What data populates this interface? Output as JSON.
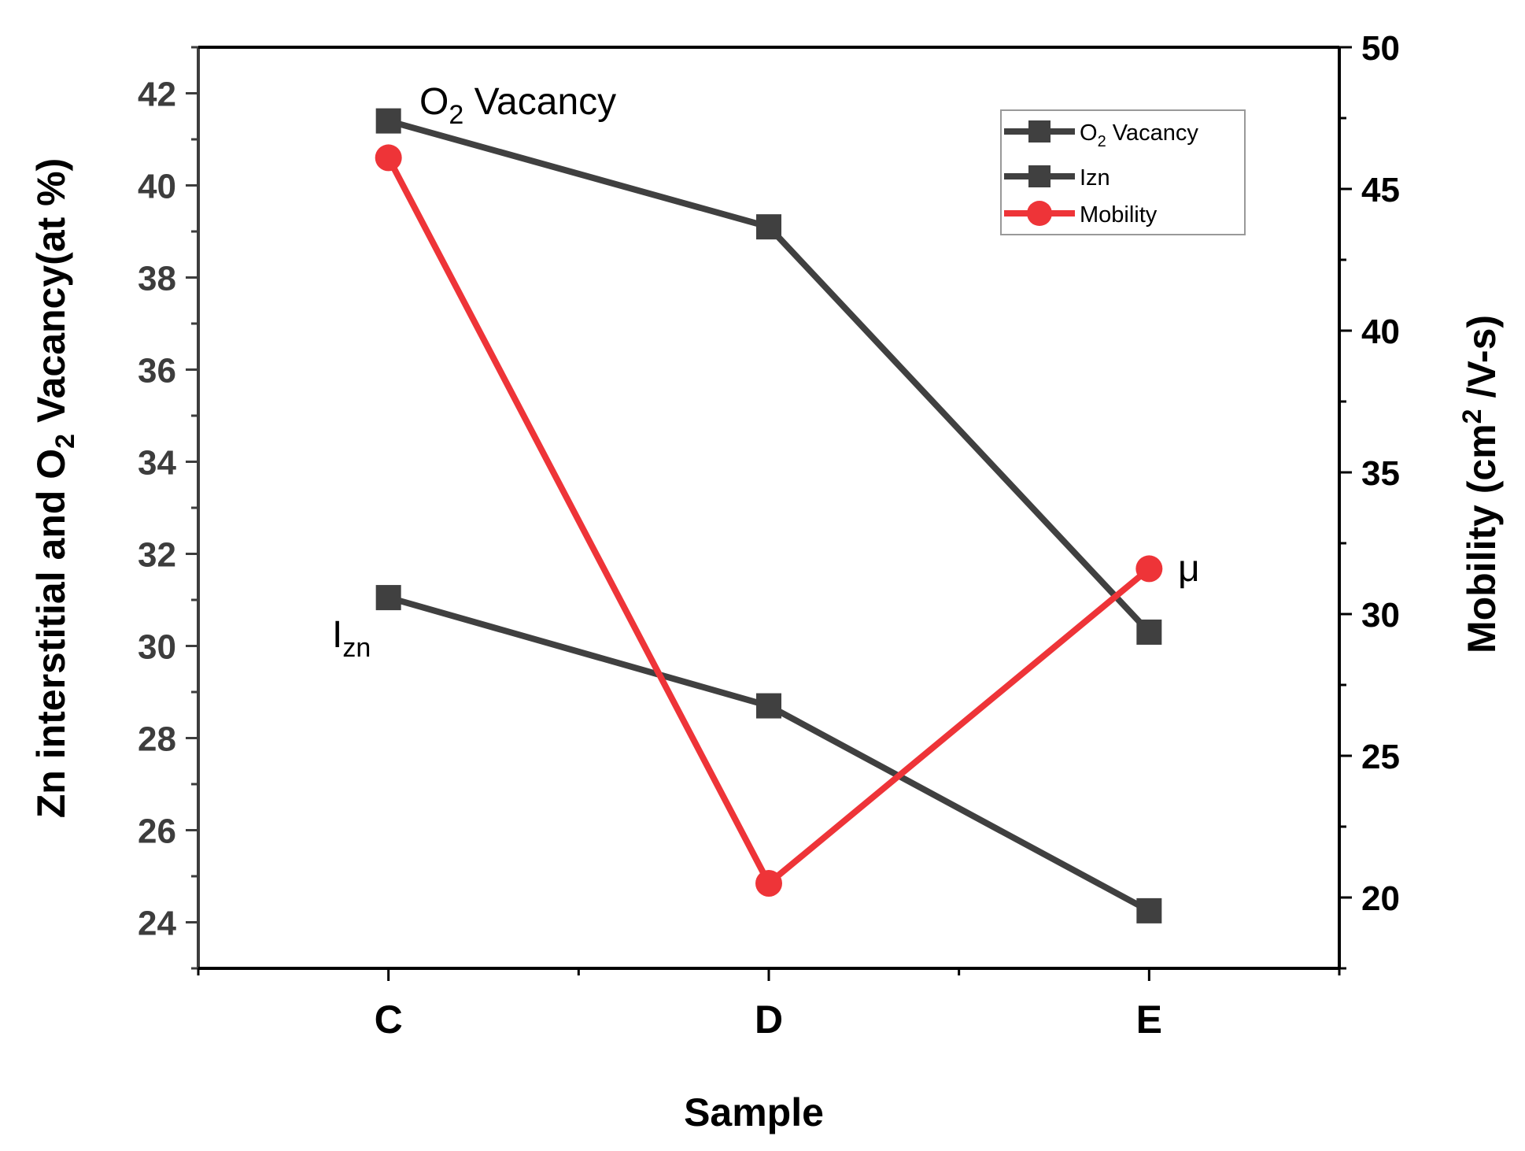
{
  "chart_data": {
    "type": "line",
    "categories": [
      "C",
      "D",
      "E"
    ],
    "xlabel": "Sample",
    "ylabel_left": {
      "text_before": "Zn interstitial and O",
      "subscript": "2",
      "text_after": " Vacancy(at %)"
    },
    "ylabel_right": {
      "text_before": "Mobility (cm",
      "superscript": "2",
      "text_after": " /V-s)"
    },
    "ylim_left": [
      23,
      43
    ],
    "ylim_right": [
      17.5,
      50
    ],
    "yticks_left": [
      24,
      26,
      28,
      30,
      32,
      34,
      36,
      38,
      40,
      42
    ],
    "yticks_right": [
      20,
      25,
      30,
      35,
      40,
      45,
      50
    ],
    "series": [
      {
        "name": "O2 Vacancy",
        "legend_label": "O",
        "legend_sub": "2",
        "legend_after": " Vacancy",
        "axis": "left",
        "marker": "square",
        "color": "#404040",
        "values": [
          41.4,
          39.1,
          30.3
        ]
      },
      {
        "name": "Izn",
        "legend_label": "Izn",
        "axis": "left",
        "marker": "square",
        "color": "#404040",
        "values": [
          31.05,
          28.7,
          24.25
        ]
      },
      {
        "name": "Mobility",
        "legend_label": "Mobility",
        "axis": "right",
        "marker": "circle",
        "color": "#ee3438",
        "values": [
          46.1,
          20.5,
          31.6
        ]
      }
    ],
    "annotations": [
      {
        "id": "o2",
        "text": "O",
        "sub": "2",
        "after": " Vacancy"
      },
      {
        "id": "izn",
        "text": "I",
        "sub": "zn",
        "after": ""
      },
      {
        "id": "mu",
        "text": "μ",
        "sub": "",
        "after": ""
      }
    ],
    "legend_position": "top-right",
    "grid": false
  }
}
